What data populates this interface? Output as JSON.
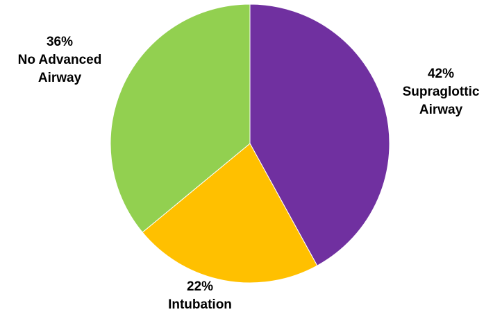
{
  "chart_data": {
    "type": "pie",
    "title": "",
    "slices": [
      {
        "label": "Supraglottic Airway",
        "label_lines": [
          "Supraglottic",
          "Airway"
        ],
        "value": 42,
        "value_label": "42%",
        "color": "#7030A0"
      },
      {
        "label": "Intubation",
        "label_lines": [
          "Intubation"
        ],
        "value": 22,
        "value_label": "22%",
        "color": "#FFC000"
      },
      {
        "label": "No Advanced Airway",
        "label_lines": [
          "No Advanced",
          "Airway"
        ],
        "value": 36,
        "value_label": "36%",
        "color": "#92D050"
      }
    ],
    "start_angle": "12 o'clock",
    "direction": "clockwise",
    "legend": "none",
    "labels_position": "outside"
  }
}
